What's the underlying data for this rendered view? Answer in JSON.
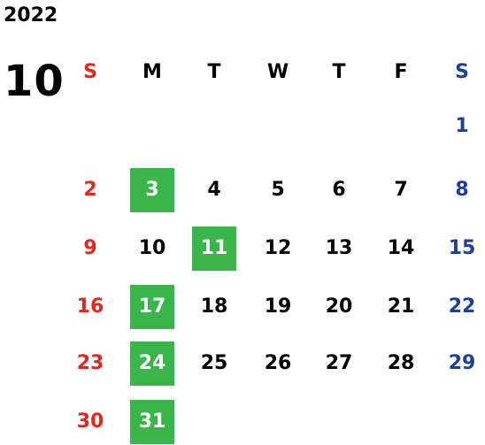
{
  "year": "2022",
  "month": "10",
  "colors": {
    "sunday": "#e0281f",
    "saturday": "#1d3f9a",
    "weekday": "#000000",
    "highlight_bg": "#39b54a",
    "highlight_text": "#ffffff"
  },
  "weekdays": [
    "S",
    "M",
    "T",
    "W",
    "T",
    "F",
    "S"
  ],
  "weeks": [
    [
      "",
      "",
      "",
      "",
      "",
      "",
      "1"
    ],
    [
      "2",
      "3",
      "4",
      "5",
      "6",
      "7",
      "8"
    ],
    [
      "9",
      "10",
      "11",
      "12",
      "13",
      "14",
      "15"
    ],
    [
      "16",
      "17",
      "18",
      "19",
      "20",
      "21",
      "22"
    ],
    [
      "23",
      "24",
      "25",
      "26",
      "27",
      "28",
      "29"
    ],
    [
      "30",
      "31",
      "",
      "",
      "",
      "",
      ""
    ]
  ],
  "highlighted_days": [
    "3",
    "11",
    "17",
    "24",
    "31"
  ]
}
